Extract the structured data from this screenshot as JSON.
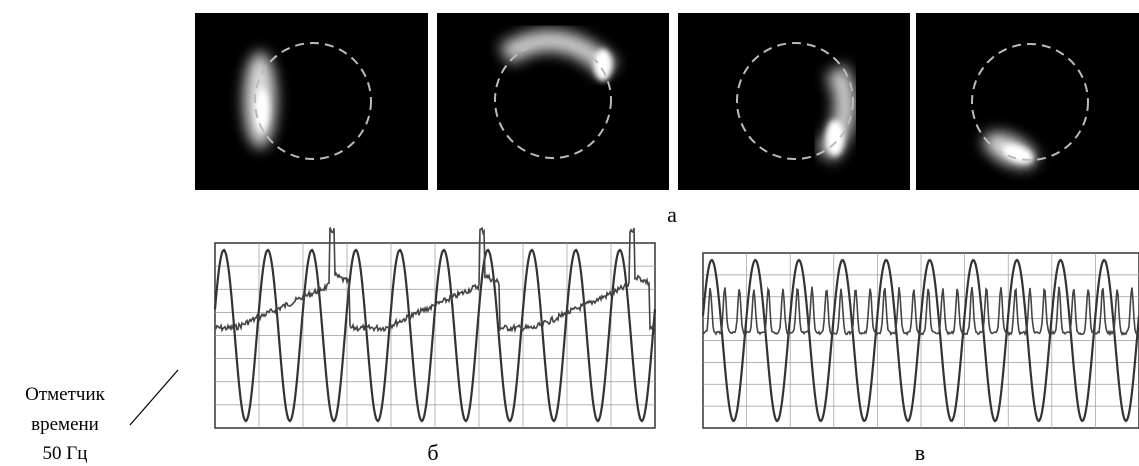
{
  "panels": [
    {
      "label": "а"
    },
    {
      "label": "б"
    },
    {
      "label": "в"
    }
  ],
  "annotation": {
    "lines": [
      "Отметчик",
      "времени",
      "50 Гц"
    ]
  }
}
